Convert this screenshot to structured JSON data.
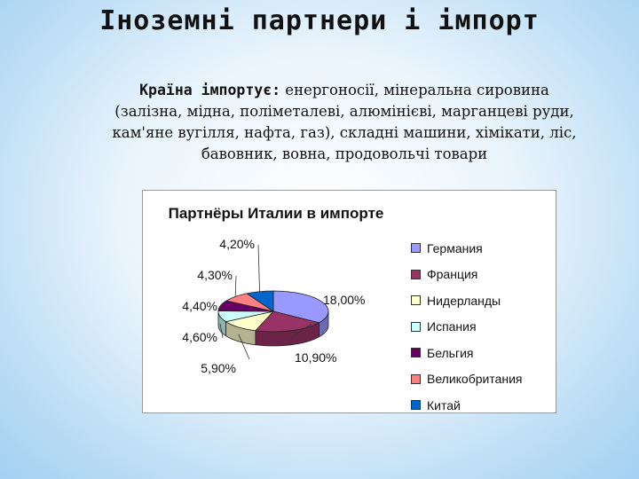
{
  "slide": {
    "title": "Іноземні партнери і імпорт",
    "lead": "Країна імпортує:",
    "text": " енергоносії, мінеральна сировина (залізна, мідна, поліметалеві, алюмінієві, марганцеві руди, кам'яне вугілля, нафта, газ), складні машини, хімікати, ліс, бавовник, вовна, продовольчі товари"
  },
  "chart_data": {
    "type": "pie",
    "title": "Партнёры Италии в импорте",
    "legend_position": "right",
    "categories": [
      "Германия",
      "Франция",
      "Нидерланды",
      "Испания",
      "Бельгия",
      "Великобритания",
      "Китай"
    ],
    "values": [
      18.0,
      10.9,
      5.9,
      4.6,
      4.4,
      4.3,
      4.2
    ],
    "labels": [
      "18,00%",
      "10,90%",
      "5,90%",
      "4,60%",
      "4,40%",
      "4,30%",
      "4,20%"
    ],
    "colors": [
      "#9999ff",
      "#993366",
      "#ffffcc",
      "#ccffff",
      "#660066",
      "#ff8080",
      "#0066cc"
    ]
  }
}
